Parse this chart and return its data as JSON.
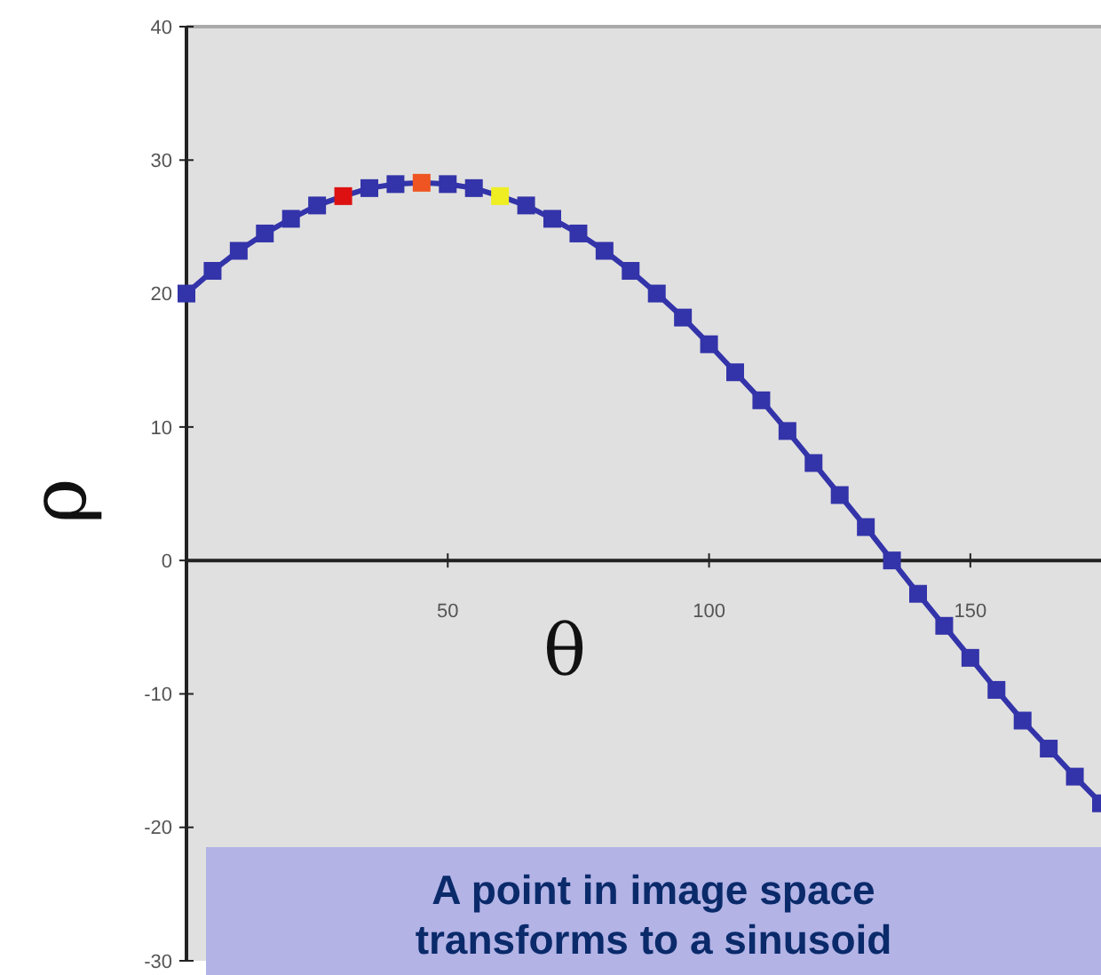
{
  "chart_data": {
    "type": "line",
    "xlabel": "θ",
    "ylabel": "ρ",
    "xlim": [
      0,
      175
    ],
    "ylim": [
      -30,
      40
    ],
    "xticks": [
      50,
      100,
      150
    ],
    "yticks": [
      -30,
      -20,
      -10,
      0,
      10,
      20,
      30,
      40
    ],
    "grid": false,
    "marker": "square",
    "line_style": "solid",
    "x": [
      0,
      5,
      10,
      15,
      20,
      25,
      30,
      35,
      40,
      45,
      50,
      55,
      60,
      65,
      70,
      75,
      80,
      85,
      90,
      95,
      100,
      105,
      110,
      115,
      120,
      125,
      130,
      135,
      140,
      145,
      150,
      155,
      160,
      165,
      170,
      175
    ],
    "series": [
      {
        "color": "#3333aa",
        "values": [
          20.0,
          21.7,
          23.2,
          24.5,
          25.6,
          26.6,
          27.3,
          27.9,
          28.2,
          28.3,
          28.2,
          27.9,
          27.3,
          26.6,
          25.6,
          24.5,
          23.2,
          21.7,
          20.0,
          18.2,
          16.2,
          14.1,
          12.0,
          9.7,
          7.3,
          4.9,
          2.5,
          0,
          -2.5,
          -4.9,
          -7.3,
          -9.7,
          -12.0,
          -14.1,
          -16.2,
          -18.2
        ],
        "colors": [
          "#3333aa",
          "#3333aa",
          "#3333aa",
          "#3333aa",
          "#3333aa",
          "#3333aa",
          "#dd1111",
          "#3333aa",
          "#3333aa",
          "#ee5522",
          "#3333aa",
          "#3333aa",
          "#eeee22",
          "#3333aa",
          "#3333aa",
          "#3333aa",
          "#3333aa",
          "#3333aa",
          "#3333aa",
          "#3333aa",
          "#3333aa",
          "#3333aa",
          "#3333aa",
          "#3333aa",
          "#3333aa",
          "#3333aa",
          "#3333aa",
          "#3333aa",
          "#3333aa",
          "#3333aa",
          "#3333aa",
          "#3333aa",
          "#3333aa",
          "#3333aa",
          "#3333aa",
          "#3333aa"
        ]
      }
    ],
    "annotations": [
      "A point in image space",
      "transforms to a sinusoid"
    ]
  }
}
